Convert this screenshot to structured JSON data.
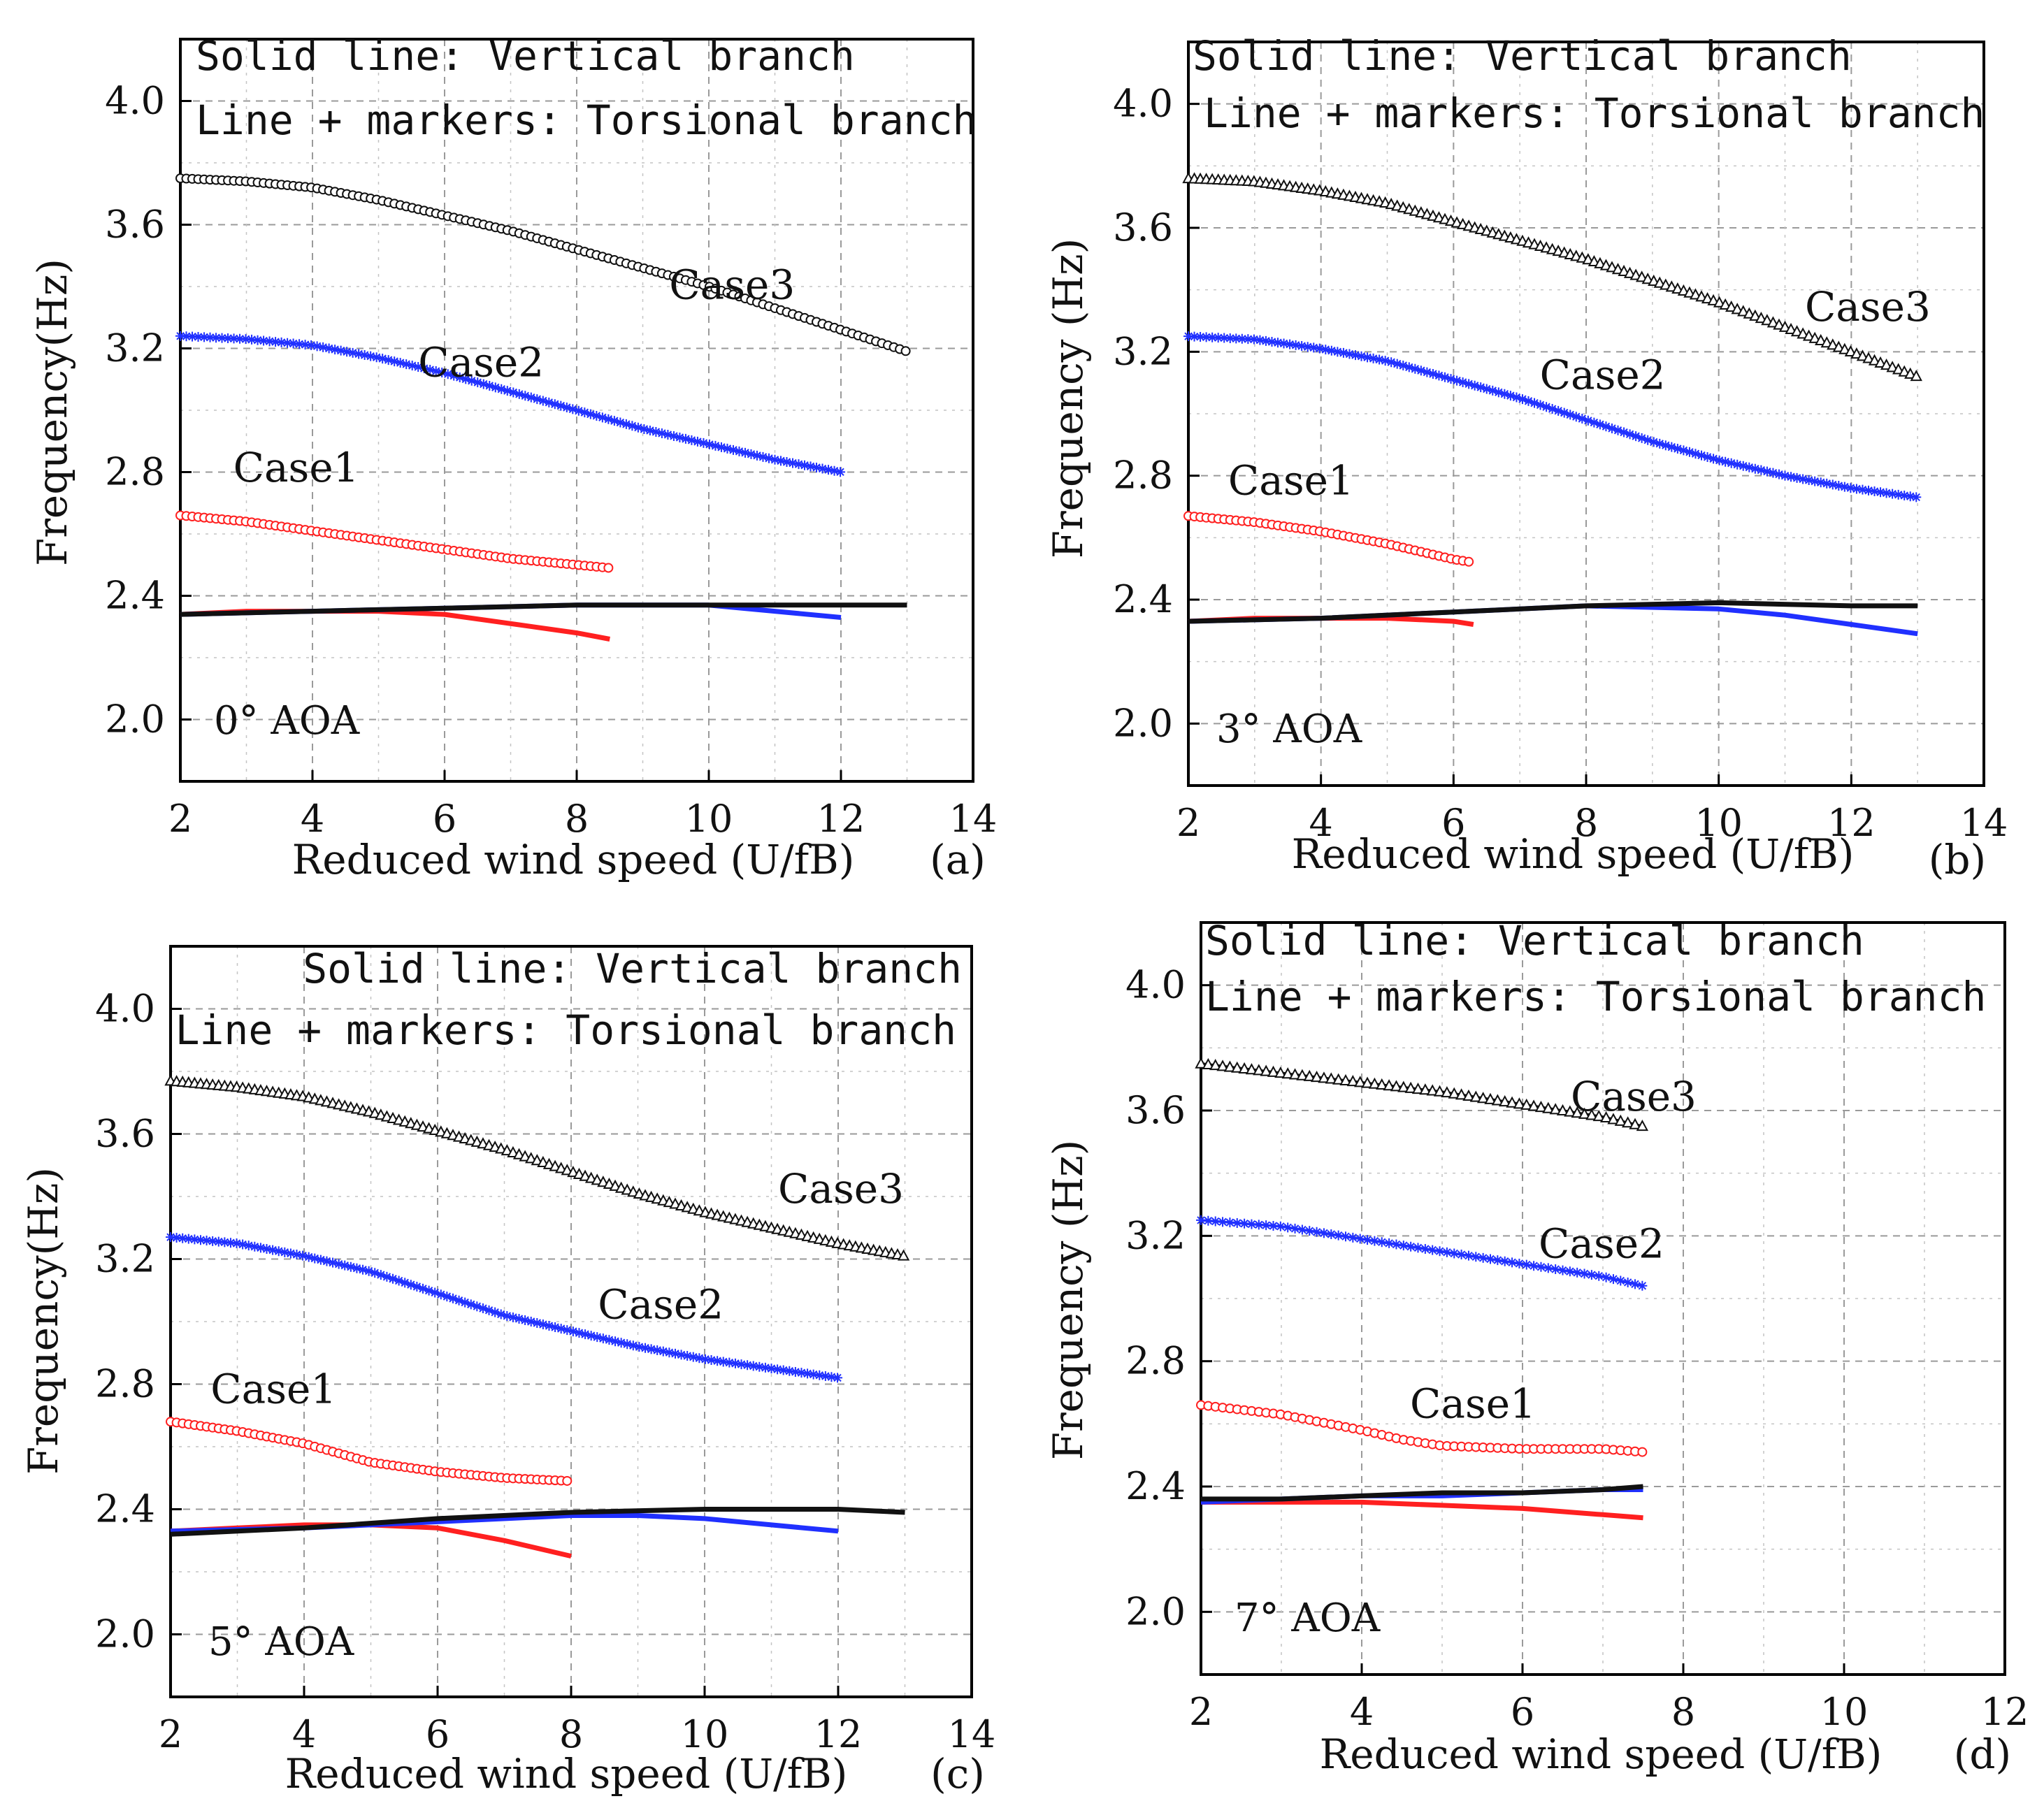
{
  "figure": {
    "legend_lines": [
      "Solid line: Vertical branch",
      "Line + markers: Torsional branch"
    ]
  },
  "chart_data": [
    {
      "type": "line",
      "panel_label": "(a)",
      "aoa_label": "0° AOA",
      "xlabel": "Reduced wind speed (U/fB)",
      "ylabel": "Frequency(Hz)",
      "xlim": [
        2,
        14
      ],
      "ylim": [
        1.8,
        4.2
      ],
      "xticks": [
        2,
        4,
        6,
        8,
        10,
        12,
        14
      ],
      "yticks": [
        2.0,
        2.4,
        2.8,
        3.2,
        3.6,
        4.0
      ],
      "grid": true,
      "legend_position": "top-left",
      "colors": {
        "case1": "#ff2020",
        "case2": "#2030ff",
        "case3": "#111111"
      },
      "series": [
        {
          "case": "Case1",
          "branch": "torsional",
          "marker": "circle",
          "x": [
            2,
            3,
            4,
            5,
            6,
            7,
            8,
            8.5
          ],
          "y": [
            2.66,
            2.64,
            2.61,
            2.58,
            2.55,
            2.52,
            2.5,
            2.49
          ]
        },
        {
          "case": "Case2",
          "branch": "torsional",
          "marker": "star",
          "x": [
            2,
            3,
            4,
            5,
            6,
            7,
            8,
            9,
            10,
            11,
            12
          ],
          "y": [
            3.24,
            3.23,
            3.21,
            3.17,
            3.12,
            3.06,
            3.0,
            2.94,
            2.89,
            2.84,
            2.8
          ]
        },
        {
          "case": "Case3",
          "branch": "torsional",
          "marker": "circle",
          "x": [
            2,
            3,
            4,
            5,
            6,
            7,
            8,
            9,
            10,
            11,
            12,
            13
          ],
          "y": [
            3.75,
            3.74,
            3.72,
            3.68,
            3.63,
            3.58,
            3.52,
            3.46,
            3.4,
            3.33,
            3.26,
            3.19
          ]
        },
        {
          "case": "Case1",
          "branch": "vertical",
          "x": [
            2,
            3,
            4,
            5,
            6,
            7,
            8,
            8.5
          ],
          "y": [
            2.34,
            2.35,
            2.35,
            2.35,
            2.34,
            2.31,
            2.28,
            2.26
          ]
        },
        {
          "case": "Case2",
          "branch": "vertical",
          "x": [
            2,
            4,
            6,
            8,
            10,
            11,
            12
          ],
          "y": [
            2.34,
            2.35,
            2.36,
            2.37,
            2.37,
            2.35,
            2.33
          ]
        },
        {
          "case": "Case3",
          "branch": "vertical",
          "x": [
            2,
            4,
            6,
            8,
            10,
            12,
            13
          ],
          "y": [
            2.34,
            2.35,
            2.36,
            2.37,
            2.37,
            2.37,
            2.37
          ]
        }
      ],
      "case_labels": [
        {
          "text": "Case1",
          "x": 2.8,
          "y": 2.77
        },
        {
          "text": "Case2",
          "x": 5.6,
          "y": 3.11
        },
        {
          "text": "Case3",
          "x": 9.4,
          "y": 3.36
        }
      ]
    },
    {
      "type": "line",
      "panel_label": "(b)",
      "aoa_label": "3° AOA",
      "xlabel": "Reduced wind speed (U/fB)",
      "ylabel": "Frequency (Hz)",
      "xlim": [
        2,
        14
      ],
      "ylim": [
        1.8,
        4.2
      ],
      "xticks": [
        2,
        4,
        6,
        8,
        10,
        12,
        14
      ],
      "yticks": [
        2.0,
        2.4,
        2.8,
        3.2,
        3.6,
        4.0
      ],
      "grid": true,
      "legend_position": "top-left",
      "colors": {
        "case1": "#ff2020",
        "case2": "#2030ff",
        "case3": "#111111"
      },
      "series": [
        {
          "case": "Case1",
          "branch": "torsional",
          "marker": "circle",
          "x": [
            2,
            3,
            4,
            5,
            6,
            6.3
          ],
          "y": [
            2.67,
            2.65,
            2.62,
            2.58,
            2.53,
            2.52
          ]
        },
        {
          "case": "Case2",
          "branch": "torsional",
          "marker": "star",
          "x": [
            2,
            3,
            4,
            5,
            6,
            7,
            8,
            9,
            10,
            11,
            12,
            13
          ],
          "y": [
            3.25,
            3.24,
            3.21,
            3.17,
            3.11,
            3.05,
            2.98,
            2.91,
            2.85,
            2.8,
            2.76,
            2.73
          ]
        },
        {
          "case": "Case3",
          "branch": "triangle",
          "marker": "triangle",
          "x": [
            2,
            3,
            4,
            5,
            6,
            7,
            8,
            9,
            10,
            11,
            12,
            13
          ],
          "y": [
            3.76,
            3.75,
            3.72,
            3.68,
            3.62,
            3.56,
            3.5,
            3.43,
            3.36,
            3.28,
            3.2,
            3.12
          ]
        },
        {
          "case": "Case1",
          "branch": "vertical",
          "x": [
            2,
            3,
            4,
            5,
            6,
            6.3
          ],
          "y": [
            2.33,
            2.34,
            2.34,
            2.34,
            2.33,
            2.32
          ]
        },
        {
          "case": "Case2",
          "branch": "vertical",
          "x": [
            2,
            4,
            6,
            8,
            10,
            11,
            12,
            13
          ],
          "y": [
            2.33,
            2.34,
            2.36,
            2.38,
            2.37,
            2.35,
            2.32,
            2.29
          ]
        },
        {
          "case": "Case3",
          "branch": "vertical",
          "x": [
            2,
            4,
            6,
            8,
            10,
            12,
            13
          ],
          "y": [
            2.33,
            2.34,
            2.36,
            2.38,
            2.39,
            2.38,
            2.38
          ]
        }
      ],
      "case_labels": [
        {
          "text": "Case1",
          "x": 2.6,
          "y": 2.74
        },
        {
          "text": "Case2",
          "x": 7.3,
          "y": 3.08
        },
        {
          "text": "Case3",
          "x": 11.3,
          "y": 3.3
        }
      ]
    },
    {
      "type": "line",
      "panel_label": "(c)",
      "aoa_label": "5° AOA",
      "xlabel": "Reduced wind speed (U/fB)",
      "ylabel": "Frequency(Hz)",
      "xlim": [
        2,
        14
      ],
      "ylim": [
        1.8,
        4.2
      ],
      "xticks": [
        2,
        4,
        6,
        8,
        10,
        12,
        14
      ],
      "yticks": [
        2.0,
        2.4,
        2.8,
        3.2,
        3.6,
        4.0
      ],
      "grid": true,
      "legend_position": "top-right",
      "colors": {
        "case1": "#ff2020",
        "case2": "#2030ff",
        "case3": "#111111"
      },
      "series": [
        {
          "case": "Case1",
          "branch": "torsional",
          "marker": "circle",
          "x": [
            2,
            3,
            4,
            5,
            6,
            7,
            8
          ],
          "y": [
            2.68,
            2.65,
            2.61,
            2.55,
            2.52,
            2.5,
            2.49
          ]
        },
        {
          "case": "Case2",
          "branch": "torsional",
          "marker": "star",
          "x": [
            2,
            3,
            4,
            5,
            6,
            7,
            8,
            9,
            10,
            11,
            12
          ],
          "y": [
            3.27,
            3.25,
            3.21,
            3.16,
            3.09,
            3.02,
            2.97,
            2.92,
            2.88,
            2.85,
            2.82
          ]
        },
        {
          "case": "Case3",
          "branch": "torsional",
          "marker": "triangle",
          "x": [
            2,
            3,
            4,
            5,
            6,
            7,
            8,
            9,
            10,
            11,
            12,
            13
          ],
          "y": [
            3.77,
            3.75,
            3.72,
            3.67,
            3.61,
            3.55,
            3.48,
            3.41,
            3.35,
            3.3,
            3.25,
            3.21
          ]
        },
        {
          "case": "Case1",
          "branch": "vertical",
          "x": [
            2,
            3,
            4,
            5,
            6,
            7,
            8
          ],
          "y": [
            2.33,
            2.34,
            2.35,
            2.35,
            2.34,
            2.3,
            2.25
          ]
        },
        {
          "case": "Case2",
          "branch": "vertical",
          "x": [
            2,
            4,
            6,
            8,
            9,
            10,
            11,
            12
          ],
          "y": [
            2.33,
            2.34,
            2.36,
            2.38,
            2.38,
            2.37,
            2.35,
            2.33
          ]
        },
        {
          "case": "Case3",
          "branch": "vertical",
          "x": [
            2,
            4,
            6,
            8,
            10,
            12,
            13
          ],
          "y": [
            2.32,
            2.34,
            2.37,
            2.39,
            2.4,
            2.4,
            2.39
          ]
        }
      ],
      "case_labels": [
        {
          "text": "Case1",
          "x": 2.6,
          "y": 2.74
        },
        {
          "text": "Case2",
          "x": 8.4,
          "y": 3.01
        },
        {
          "text": "Case3",
          "x": 11.1,
          "y": 3.38
        }
      ]
    },
    {
      "type": "line",
      "panel_label": "(d)",
      "aoa_label": "7° AOA",
      "xlabel": "Reduced wind speed (U/fB)",
      "ylabel": "Frequency (Hz)",
      "xlim": [
        2,
        12
      ],
      "ylim": [
        1.8,
        4.2
      ],
      "xticks": [
        2,
        4,
        6,
        8,
        10,
        12
      ],
      "yticks": [
        2.0,
        2.4,
        2.8,
        3.2,
        3.6,
        4.0
      ],
      "grid": true,
      "legend_position": "top-left",
      "colors": {
        "case1": "#ff2020",
        "case2": "#2030ff",
        "case3": "#111111"
      },
      "series": [
        {
          "case": "Case1",
          "branch": "torsional",
          "marker": "circle",
          "x": [
            2,
            3,
            4,
            4.5,
            5,
            6,
            7,
            7.5
          ],
          "y": [
            2.66,
            2.63,
            2.58,
            2.55,
            2.53,
            2.52,
            2.52,
            2.51
          ]
        },
        {
          "case": "Case2",
          "branch": "torsional",
          "marker": "star",
          "x": [
            2,
            3,
            4,
            5,
            6,
            7,
            7.5
          ],
          "y": [
            3.25,
            3.23,
            3.19,
            3.15,
            3.11,
            3.07,
            3.04
          ]
        },
        {
          "case": "Case3",
          "branch": "torsional",
          "marker": "triangle",
          "x": [
            2,
            3,
            4,
            5,
            6,
            7,
            7.5
          ],
          "y": [
            3.75,
            3.72,
            3.69,
            3.66,
            3.62,
            3.58,
            3.55
          ]
        },
        {
          "case": "Case1",
          "branch": "vertical",
          "x": [
            2,
            3,
            4,
            5,
            6,
            7,
            7.5
          ],
          "y": [
            2.35,
            2.35,
            2.35,
            2.34,
            2.33,
            2.31,
            2.3
          ]
        },
        {
          "case": "Case2",
          "branch": "vertical",
          "x": [
            2,
            3,
            4,
            5,
            6,
            7,
            7.5
          ],
          "y": [
            2.35,
            2.36,
            2.37,
            2.37,
            2.38,
            2.39,
            2.39
          ]
        },
        {
          "case": "Case3",
          "branch": "vertical",
          "x": [
            2,
            3,
            4,
            5,
            6,
            7,
            7.5
          ],
          "y": [
            2.36,
            2.36,
            2.37,
            2.38,
            2.38,
            2.39,
            2.4
          ]
        }
      ],
      "case_labels": [
        {
          "text": "Case1",
          "x": 4.6,
          "y": 2.62
        },
        {
          "text": "Case2",
          "x": 6.2,
          "y": 3.13
        },
        {
          "text": "Case3",
          "x": 6.6,
          "y": 3.6
        }
      ]
    }
  ]
}
